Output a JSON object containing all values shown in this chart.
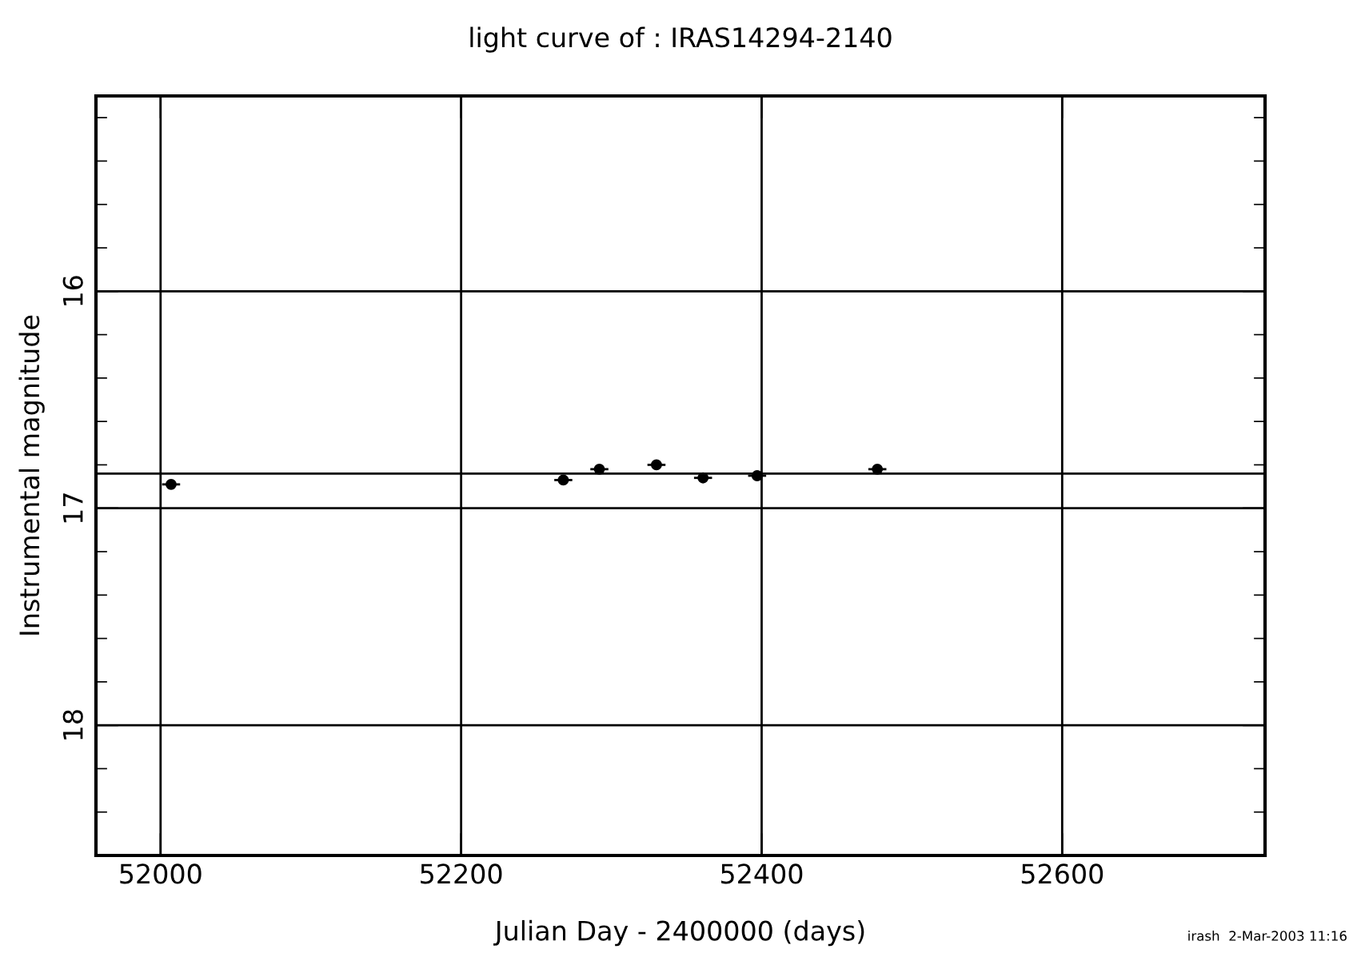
{
  "chart_data": {
    "type": "scatter",
    "title": "light curve of : IRAS14294-2140",
    "xlabel": "Julian Day - 2400000 (days)",
    "ylabel": "Instrumental magnitude",
    "x": [
      52007,
      52268,
      52292,
      52330,
      52361,
      52397,
      52477
    ],
    "values": [
      16.89,
      16.87,
      16.82,
      16.8,
      16.86,
      16.85,
      16.82
    ],
    "xerrors": [
      6,
      6,
      6,
      6,
      6,
      6,
      6
    ],
    "color": "#000000",
    "marker": "circle",
    "xlim": [
      51957,
      52735
    ],
    "xticks": [
      52000,
      52200,
      52400,
      52600
    ],
    "ylim": [
      18.6,
      15.1
    ],
    "yticks": [
      {
        "value": 15.2,
        "label": null
      },
      {
        "value": 15.4,
        "label": null
      },
      {
        "value": 15.6,
        "label": null
      },
      {
        "value": 15.8,
        "label": null
      },
      16,
      {
        "value": 16.2,
        "label": null
      },
      {
        "value": 16.4,
        "label": null
      },
      {
        "value": 16.6,
        "label": null
      },
      {
        "value": 16.8,
        "label": null
      },
      17,
      {
        "value": 17.2,
        "label": null
      },
      {
        "value": 17.4,
        "label": null
      },
      {
        "value": 17.6,
        "label": null
      },
      {
        "value": 17.8,
        "label": null
      },
      18,
      {
        "value": 18.2,
        "label": null
      },
      {
        "value": 18.4,
        "label": null
      }
    ],
    "ref_lines": [
      {
        "axis": "y",
        "value": 16.84,
        "color": "#000000"
      }
    ],
    "grid": true,
    "annotations": [
      "irash  2-Mar-2003 11:16"
    ]
  }
}
